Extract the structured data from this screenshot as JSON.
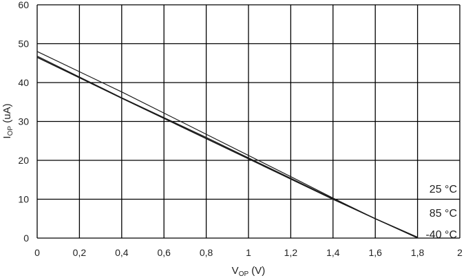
{
  "chart_data": {
    "type": "line",
    "xlim": [
      0,
      2
    ],
    "ylim": [
      0,
      60
    ],
    "x_ticks": [
      0,
      0.2,
      0.4,
      0.6,
      0.8,
      1,
      1.2,
      1.4,
      1.6,
      1.8,
      2
    ],
    "x_tick_labels": [
      "0",
      "0,2",
      "0,4",
      "0,6",
      "0,8",
      "1",
      "1,2",
      "1,4",
      "1,6",
      "1,8",
      "2"
    ],
    "y_ticks": [
      0,
      10,
      20,
      30,
      40,
      50,
      60
    ],
    "y_tick_labels": [
      "0",
      "10",
      "20",
      "30",
      "40",
      "50",
      "60"
    ],
    "xlabel": {
      "main": "V",
      "sub": "OP",
      "rest": " (V)"
    },
    "ylabel": {
      "main": "I",
      "sub": "OP",
      "rest": " (uA)"
    },
    "grid": true,
    "series": [
      {
        "name": "25 °C",
        "x": [
          0,
          0.4,
          0.8,
          1.2,
          1.4,
          1.6,
          1.8
        ],
        "y": [
          46.5,
          36.0,
          25.6,
          15.2,
          10.0,
          5.0,
          0.2
        ]
      },
      {
        "name": "85 °C",
        "x": [
          0,
          0.4,
          0.8,
          1.2,
          1.4,
          1.6,
          1.8
        ],
        "y": [
          46.8,
          36.1,
          25.9,
          15.4,
          10.1,
          5.0,
          0.1
        ]
      },
      {
        "name": "-40 °C",
        "x": [
          0,
          0.4,
          0.8,
          1.2,
          1.4,
          1.6,
          1.8
        ],
        "y": [
          48.0,
          37.6,
          26.7,
          15.8,
          10.3,
          5.0,
          0.0
        ]
      }
    ],
    "colors": {
      "line": "#1a1a1a",
      "grid": "#000000",
      "text": "#222222",
      "background": "#ffffff"
    }
  }
}
